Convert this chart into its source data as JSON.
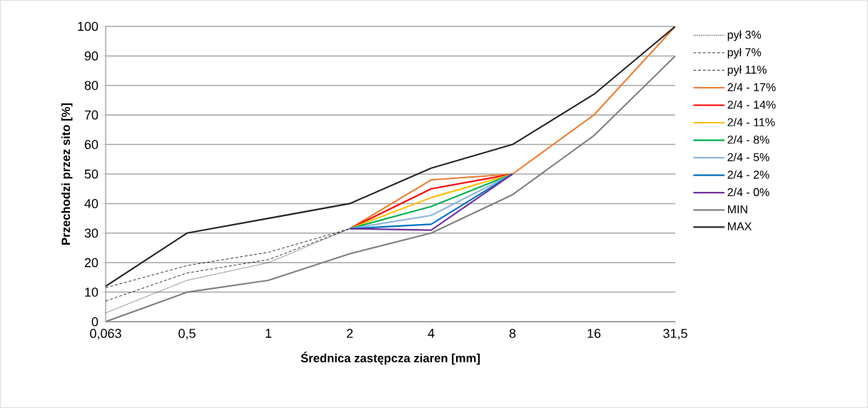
{
  "chart_data": {
    "type": "line",
    "xlabel": "Średnica zastępcza ziaren [mm]",
    "ylabel": "Przechodzi przez sito [%]",
    "categories": [
      "0,063",
      "0,5",
      "1",
      "2",
      "4",
      "8",
      "16",
      "31,5"
    ],
    "ylim": [
      0,
      100
    ],
    "yticks": [
      0,
      10,
      20,
      30,
      40,
      50,
      60,
      70,
      80,
      90,
      100
    ],
    "grid": "y",
    "legend": "right",
    "series": [
      {
        "name": "pył 3%",
        "color": "#000000",
        "line_style": "dotted",
        "values": [
          3,
          14,
          20,
          31.5,
          null,
          null,
          null,
          null
        ]
      },
      {
        "name": "pył 7%",
        "color": "#000000",
        "line_style": "dashed",
        "values": [
          7,
          16.5,
          21,
          31.5,
          null,
          null,
          null,
          null
        ]
      },
      {
        "name": "pył 11%",
        "color": "#000000",
        "line_style": "dashed",
        "values": [
          11.5,
          19,
          23.5,
          31.5,
          null,
          null,
          null,
          null
        ]
      },
      {
        "name": "2/4 - 17%",
        "color": "#ed7d31",
        "line_style": "solid",
        "values": [
          null,
          null,
          null,
          31.5,
          48,
          50,
          70,
          100
        ]
      },
      {
        "name": "2/4 - 14%",
        "color": "#ff0000",
        "line_style": "solid",
        "values": [
          null,
          null,
          null,
          31.5,
          45,
          50,
          null,
          null
        ]
      },
      {
        "name": "2/4 - 11%",
        "color": "#ffc000",
        "line_style": "solid",
        "values": [
          null,
          null,
          null,
          31.5,
          42,
          50,
          null,
          null
        ]
      },
      {
        "name": "2/4 - 8%",
        "color": "#00b050",
        "line_style": "solid",
        "values": [
          null,
          null,
          null,
          31.5,
          39,
          50,
          null,
          null
        ]
      },
      {
        "name": "2/4 - 5%",
        "color": "#8db4e2",
        "line_style": "solid",
        "values": [
          null,
          null,
          null,
          31.5,
          36,
          50,
          null,
          null
        ]
      },
      {
        "name": "2/4 - 2%",
        "color": "#0070c0",
        "line_style": "solid",
        "values": [
          null,
          null,
          null,
          31.5,
          33,
          50,
          null,
          null
        ]
      },
      {
        "name": "2/4 - 0%",
        "color": "#7030a0",
        "line_style": "solid",
        "values": [
          null,
          null,
          null,
          31.5,
          31,
          50,
          null,
          null
        ]
      },
      {
        "name": "MIN",
        "color": "#808080",
        "line_style": "solid",
        "values": [
          0,
          10,
          14,
          23,
          30,
          43,
          63,
          90
        ]
      },
      {
        "name": "MAX",
        "color": "#262626",
        "line_style": "solid",
        "values": [
          12,
          30,
          35,
          40,
          52,
          60,
          77,
          100
        ]
      }
    ]
  }
}
